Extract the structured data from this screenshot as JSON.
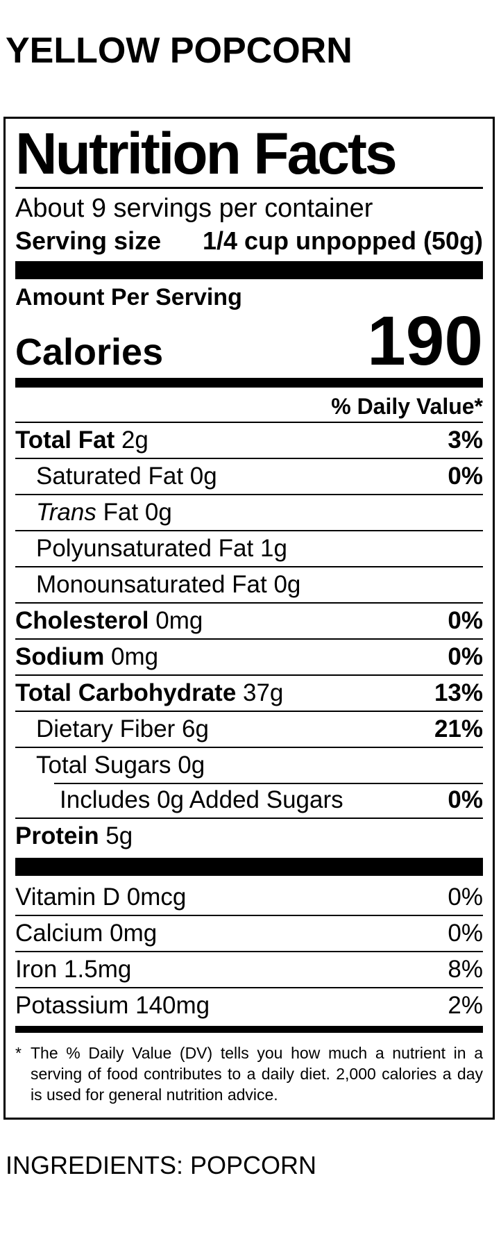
{
  "page": {
    "title": "YELLOW POPCORN",
    "ingredients": "INGREDIENTS: POPCORN"
  },
  "colors": {
    "ink": "#000000",
    "background": "#ffffff"
  },
  "label": {
    "title": "Nutrition Facts",
    "servings_per_container": "About 9 servings per container",
    "serving_size": {
      "label": "Serving size",
      "value": "1/4 cup unpopped (50g)"
    },
    "amount_per_serving": "Amount Per Serving",
    "calories": {
      "label": "Calories",
      "value": "190"
    },
    "daily_value_header": "% Daily Value*",
    "nutrients": [
      {
        "name": "Total Fat",
        "amount": "2g",
        "dv": "3%",
        "bold": true,
        "indent": 0
      },
      {
        "name": "Saturated Fat",
        "amount": "0g",
        "dv": "0%",
        "bold": false,
        "indent": 1
      },
      {
        "italic_prefix": "Trans",
        "name": "Fat",
        "amount": "0g",
        "dv": null,
        "bold": false,
        "indent": 1
      },
      {
        "name": "Polyunsaturated Fat",
        "amount": "1g",
        "dv": null,
        "bold": false,
        "indent": 1
      },
      {
        "name": "Monounsaturated Fat",
        "amount": "0g",
        "dv": null,
        "bold": false,
        "indent": 1
      },
      {
        "name": "Cholesterol",
        "amount": "0mg",
        "dv": "0%",
        "bold": true,
        "indent": 0
      },
      {
        "name": "Sodium",
        "amount": "0mg",
        "dv": "0%",
        "bold": true,
        "indent": 0
      },
      {
        "name": "Total Carbohydrate",
        "amount": "37g",
        "dv": "13%",
        "bold": true,
        "indent": 0
      },
      {
        "name": "Dietary Fiber",
        "amount": "6g",
        "dv": "21%",
        "bold": false,
        "indent": 1
      },
      {
        "name": "Total Sugars",
        "amount": "0g",
        "dv": null,
        "bold": false,
        "indent": 1
      },
      {
        "name": "Includes 0g Added Sugars",
        "amount": "",
        "dv": "0%",
        "bold": false,
        "indent": 2,
        "inset_divider": true
      },
      {
        "name": "Protein",
        "amount": "5g",
        "dv": null,
        "bold": true,
        "indent": 0
      }
    ],
    "vitamins": [
      {
        "name": "Vitamin D",
        "amount": "0mcg",
        "dv": "0%",
        "bold": false,
        "indent": 0
      },
      {
        "name": "Calcium",
        "amount": "0mg",
        "dv": "0%",
        "bold": false,
        "indent": 0
      },
      {
        "name": "Iron",
        "amount": "1.5mg",
        "dv": "8%",
        "bold": false,
        "indent": 0
      },
      {
        "name": "Potassium",
        "amount": "140mg",
        "dv": "2%",
        "bold": false,
        "indent": 0
      }
    ],
    "footnote_marker": "*",
    "footnote": "The % Daily Value (DV) tells you how much a nutrient in a serving of food contributes to a daily diet. 2,000 calories a day is used for general nutrition advice."
  }
}
